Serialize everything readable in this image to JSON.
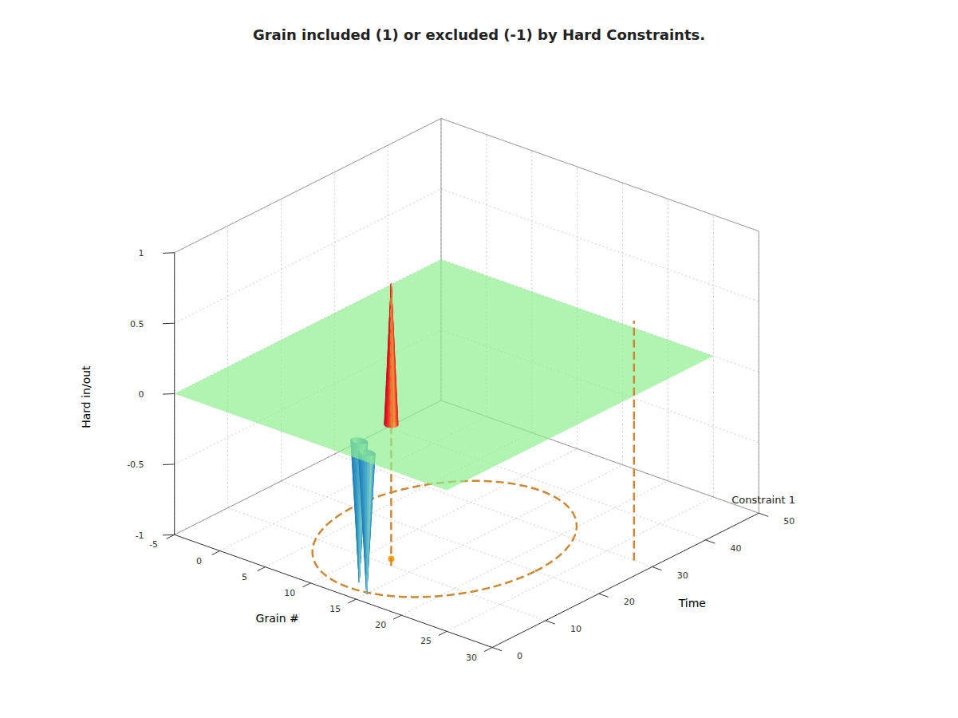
{
  "chart_data": {
    "type": "surface3d",
    "title": "Grain included (1) or excluded (-1) by Hard Constraints.",
    "xlabel": "Grain #",
    "ylabel": "Time",
    "zlabel": "Hard in/out",
    "xlim": [
      -5,
      30
    ],
    "ylim": [
      0,
      50
    ],
    "zlim": [
      -1,
      1
    ],
    "xticks": [
      -5,
      0,
      5,
      10,
      15,
      20,
      25,
      30
    ],
    "yticks": [
      0,
      10,
      20,
      30,
      40,
      50
    ],
    "zticks": [
      -1,
      -0.5,
      0,
      0.5,
      1
    ],
    "grid": true,
    "plane": {
      "x": [
        -5,
        25
      ],
      "y": [
        0,
        50
      ],
      "z": 0,
      "color": "#90ee90"
    },
    "spikes": {
      "x": [
        15,
        13,
        13
      ],
      "y": [
        2,
        4,
        10
      ],
      "values": [
        -1,
        -1,
        1
      ]
    },
    "ellipse": {
      "x": 13,
      "y": 20,
      "x_radius": 10,
      "y_radius": 18,
      "z": -1,
      "color": "#cc8833"
    },
    "lines": [
      {
        "x": 13,
        "y": 10,
        "z": [
          -1,
          0.9
        ],
        "color": "#cc8833"
      },
      {
        "x": 28,
        "y": 30,
        "z": [
          -1,
          0.7
        ],
        "color": "#cc8833"
      }
    ],
    "point": {
      "x": 13,
      "y": 10,
      "z": -0.95,
      "color": "orange"
    },
    "annotations": [
      {
        "text": "Constraint 1",
        "x": 27,
        "y": 50,
        "z": -1
      }
    ]
  }
}
